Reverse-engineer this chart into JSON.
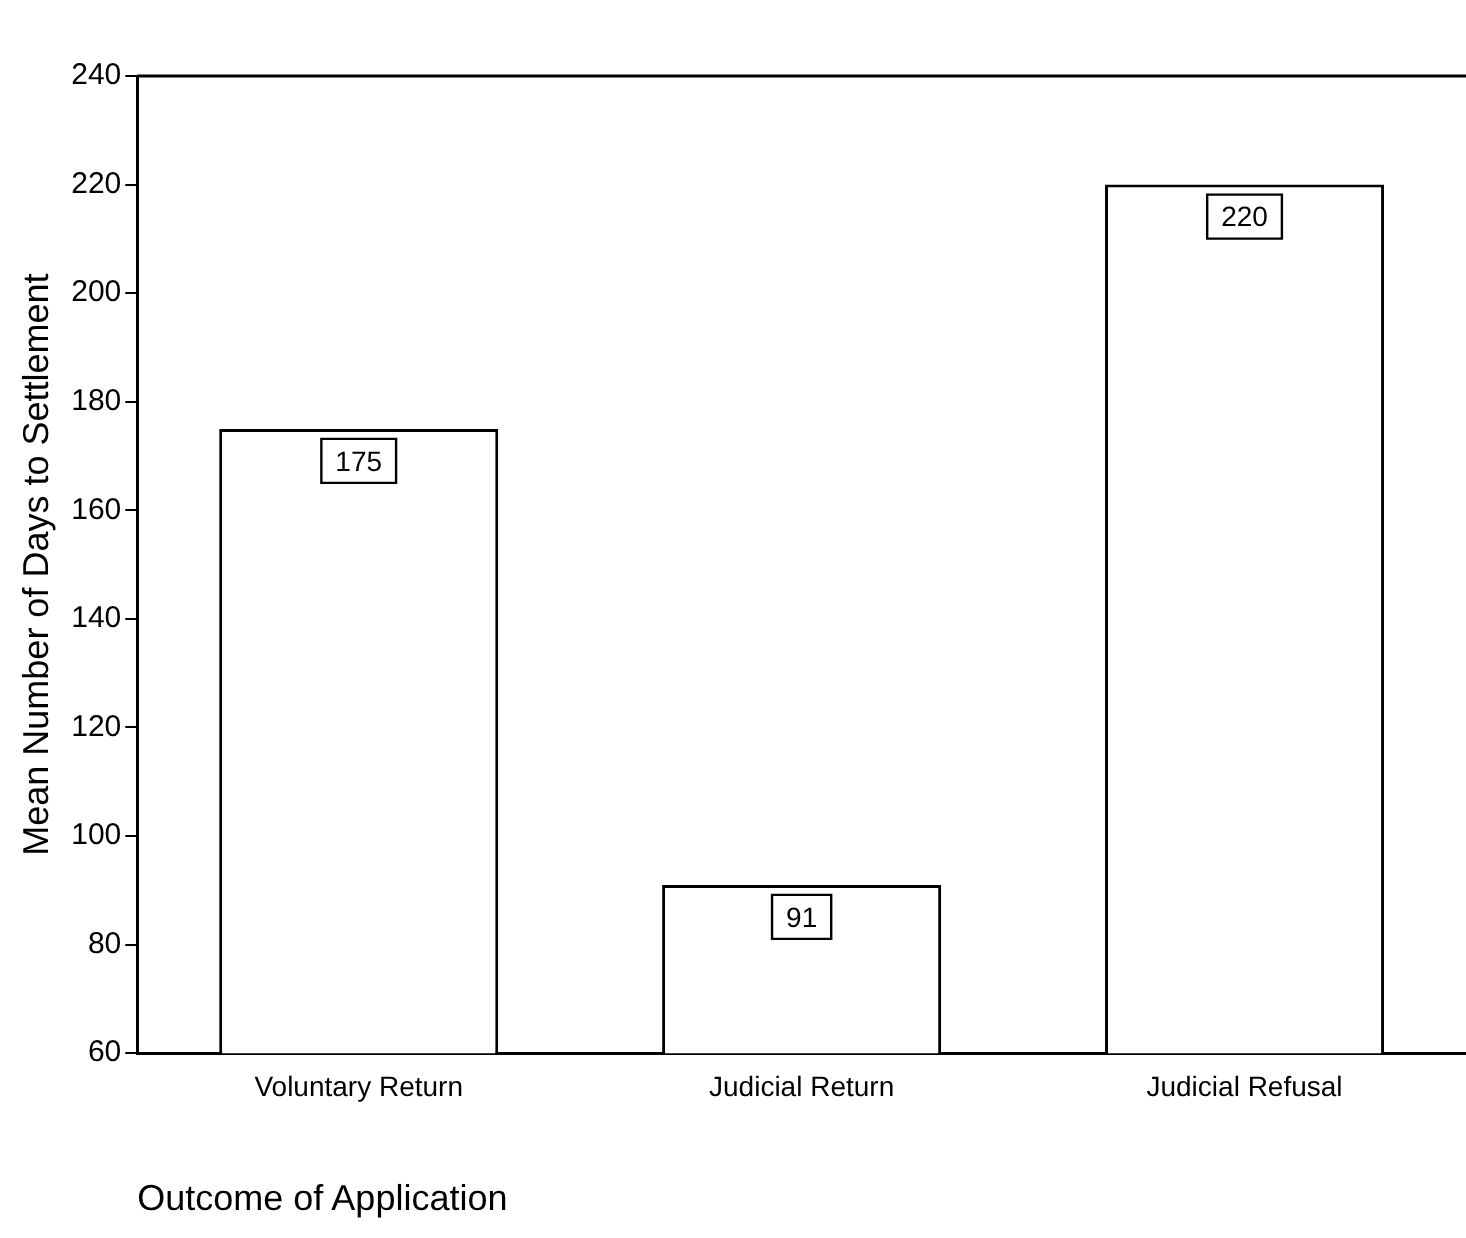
{
  "chart_data": {
    "type": "bar",
    "xlabel": "Outcome of Application",
    "ylabel": "Mean Number of Days to Settlement",
    "categories": [
      "Voluntary Return",
      "Judicial Return",
      "Judicial Refusal"
    ],
    "values": [
      175,
      91,
      220
    ],
    "color": "#ffffff",
    "ylim": [
      60,
      240
    ],
    "yticks": [
      60,
      80,
      100,
      120,
      140,
      160,
      180,
      200,
      220,
      240
    ],
    "data_labels": true,
    "grid": false,
    "legend": false
  }
}
